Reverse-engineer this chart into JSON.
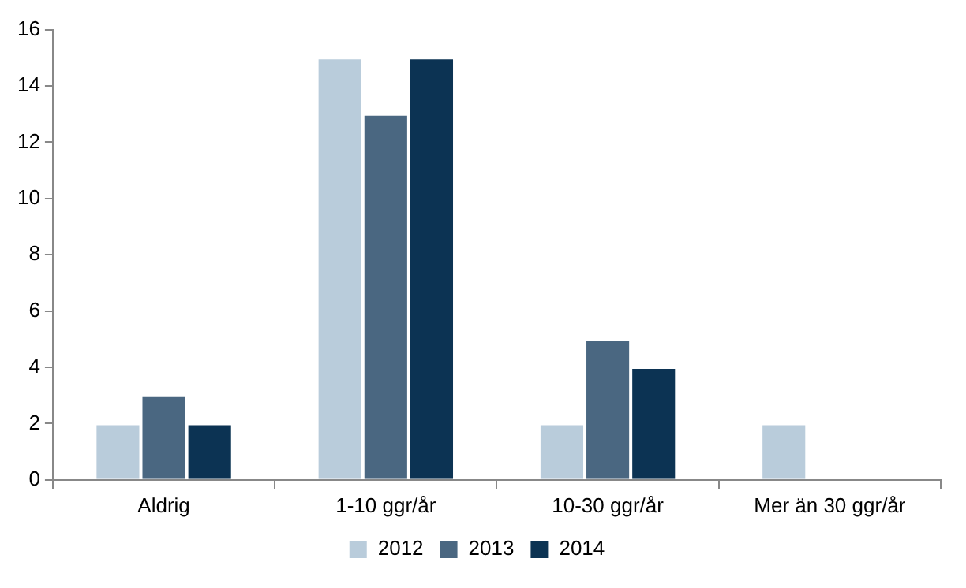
{
  "chart_data": {
    "type": "bar",
    "categories": [
      "Aldrig",
      "1-10 ggr/år",
      "10-30 ggr/år",
      "Mer än 30 ggr/år"
    ],
    "series": [
      {
        "name": "2012",
        "color": "#b9ccdb",
        "values": [
          2,
          15,
          2,
          2
        ]
      },
      {
        "name": "2013",
        "color": "#4a6781",
        "values": [
          3,
          13,
          5,
          0
        ]
      },
      {
        "name": "2014",
        "color": "#0c3353",
        "values": [
          2,
          15,
          4,
          0
        ]
      }
    ],
    "ylim": [
      0,
      16
    ],
    "yticks": [
      0,
      2,
      4,
      6,
      8,
      10,
      12,
      14,
      16
    ],
    "grid": false,
    "legend": "bottom"
  }
}
